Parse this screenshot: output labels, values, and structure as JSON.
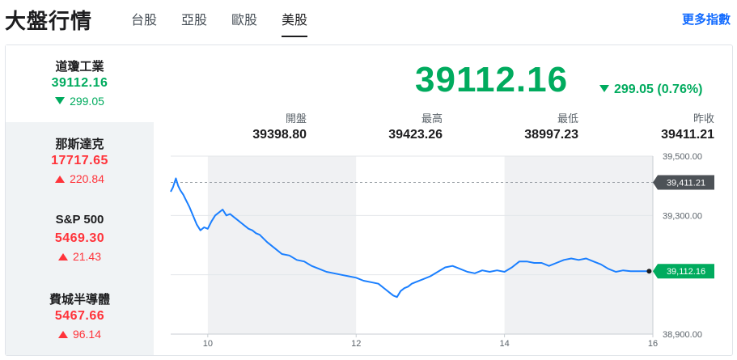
{
  "header": {
    "title": "大盤行情",
    "tabs": [
      {
        "label": "台股",
        "active": false
      },
      {
        "label": "亞股",
        "active": false
      },
      {
        "label": "歐股",
        "active": false
      },
      {
        "label": "美股",
        "active": true
      }
    ],
    "more_link": "更多指數"
  },
  "sidebar": {
    "items": [
      {
        "name": "道瓊工業",
        "price": "39112.16",
        "change": "299.05",
        "direction": "down",
        "active": true
      },
      {
        "name": "那斯達克",
        "price": "17717.65",
        "change": "220.84",
        "direction": "up",
        "active": false
      },
      {
        "name": "S&P 500",
        "price": "5469.30",
        "change": "21.43",
        "direction": "up",
        "active": false
      },
      {
        "name": "費城半導體",
        "price": "5467.66",
        "change": "96.14",
        "direction": "up",
        "active": false
      }
    ]
  },
  "quote": {
    "price": "39112.16",
    "change": "299.05 (0.76%)",
    "direction": "down",
    "stats": [
      {
        "label": "開盤",
        "value": "39398.80"
      },
      {
        "label": "最高",
        "value": "39423.26"
      },
      {
        "label": "最低",
        "value": "38997.23"
      },
      {
        "label": "昨收",
        "value": "39411.21"
      }
    ]
  },
  "colors": {
    "up": "#ff333a",
    "down": "#00ab5e",
    "line": "#1a7fff",
    "prev_close_tag": "#4d5257",
    "last_price_tag": "#00ab5e"
  },
  "chart_data": {
    "type": "line",
    "x_ticks": [
      "10",
      "12",
      "14",
      "16"
    ],
    "y_ticks": [
      "39,500.00",
      "39,300.00",
      "38,900.00"
    ],
    "ylim": [
      38900,
      39500
    ],
    "xlim": [
      9.5,
      16
    ],
    "shaded_hours": [
      [
        10,
        12
      ],
      [
        14,
        16
      ]
    ],
    "prev_close": 39411.21,
    "prev_close_label": "39,411.21",
    "last_price_label": "39,112.16",
    "series": [
      {
        "x": [
          9.5,
          9.53,
          9.57,
          9.6,
          9.63,
          9.67,
          9.7,
          9.75,
          9.8,
          9.85,
          9.9,
          9.95,
          10.0,
          10.05,
          10.1,
          10.15,
          10.2,
          10.25,
          10.3,
          10.35,
          10.4,
          10.45,
          10.5,
          10.55,
          10.6,
          10.65,
          10.7,
          10.8,
          10.9,
          11.0,
          11.1,
          11.2,
          11.3,
          11.4,
          11.5,
          11.6,
          11.7,
          11.8,
          11.9,
          12.0,
          12.1,
          12.2,
          12.3,
          12.4,
          12.45,
          12.5,
          12.55,
          12.6,
          12.65,
          12.7,
          12.75,
          12.8,
          12.9,
          13.0,
          13.1,
          13.2,
          13.3,
          13.4,
          13.5,
          13.6,
          13.7,
          13.8,
          13.9,
          14.0,
          14.1,
          14.2,
          14.3,
          14.4,
          14.5,
          14.6,
          14.7,
          14.8,
          14.9,
          15.0,
          15.1,
          15.2,
          15.3,
          15.4,
          15.5,
          15.6,
          15.7,
          15.8,
          15.9,
          15.95
        ],
        "y": [
          39380,
          39395,
          39425,
          39400,
          39385,
          39370,
          39355,
          39330,
          39300,
          39270,
          39250,
          39260,
          39255,
          39280,
          39300,
          39310,
          39320,
          39300,
          39305,
          39295,
          39285,
          39275,
          39265,
          39255,
          39250,
          39240,
          39235,
          39210,
          39190,
          39170,
          39165,
          39150,
          39145,
          39130,
          39120,
          39110,
          39105,
          39100,
          39095,
          39090,
          39080,
          39075,
          39070,
          39050,
          39040,
          39030,
          39025,
          39045,
          39055,
          39060,
          39070,
          39075,
          39085,
          39095,
          39110,
          39125,
          39130,
          39120,
          39110,
          39105,
          39115,
          39110,
          39115,
          39110,
          39125,
          39145,
          39145,
          39140,
          39140,
          39130,
          39140,
          39150,
          39155,
          39150,
          39155,
          39145,
          39135,
          39120,
          39110,
          39115,
          39112,
          39112,
          39112,
          39112.16
        ]
      }
    ]
  }
}
